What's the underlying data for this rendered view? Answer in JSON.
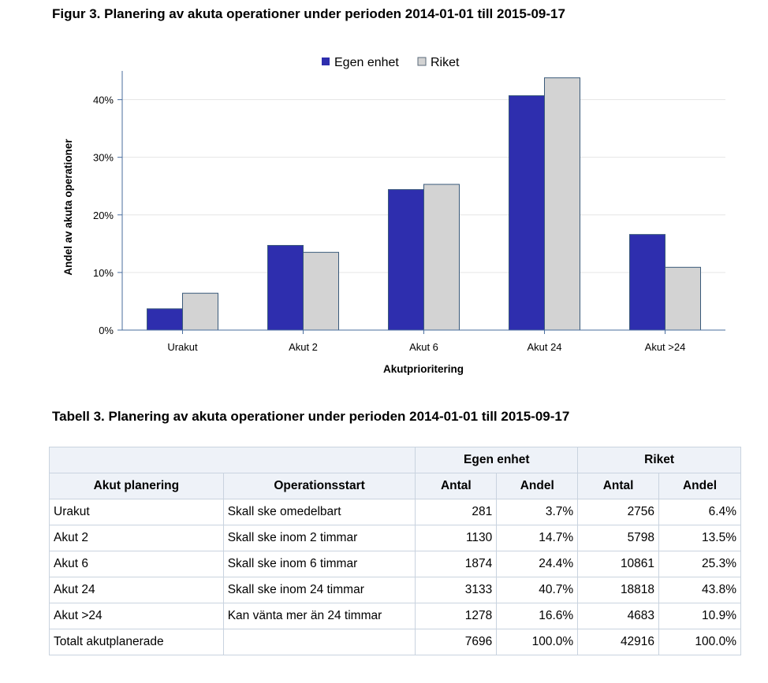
{
  "figure_title": "Figur 3. Planering av akuta operationer under perioden 2014-01-01 till 2015-09-17",
  "table_title": "Tabell 3. Planering av akuta operationer under perioden 2014-01-01 till 2015-09-17",
  "colors": {
    "egen": "#2e2eae",
    "riket": "#d3d3d3"
  },
  "chart_data": {
    "type": "bar",
    "categories": [
      "Urakut",
      "Akut 2",
      "Akut 6",
      "Akut 24",
      "Akut >24"
    ],
    "series": [
      {
        "name": "Egen enhet",
        "values": [
          3.7,
          14.7,
          24.4,
          40.7,
          16.6
        ],
        "color": "#2e2eae"
      },
      {
        "name": "Riket",
        "values": [
          6.4,
          13.5,
          25.3,
          43.8,
          10.9
        ],
        "color": "#d3d3d3"
      }
    ],
    "xlabel": "Akutprioritering",
    "ylabel": "Andel av akuta operationer",
    "ylim": [
      0,
      45
    ],
    "yticks": [
      0,
      10,
      20,
      30,
      40
    ],
    "ytick_labels": [
      "0%",
      "10%",
      "20%",
      "30%",
      "40%"
    ],
    "legend_position": "top-center",
    "grid": true
  },
  "table": {
    "group_headers": [
      "Egen enhet",
      "Riket"
    ],
    "columns": [
      "Akut planering",
      "Operationsstart",
      "Antal",
      "Andel",
      "Antal",
      "Andel"
    ],
    "rows": [
      [
        "Urakut",
        "Skall ske omedelbart",
        "281",
        "3.7%",
        "2756",
        "6.4%"
      ],
      [
        "Akut 2",
        "Skall ske inom 2 timmar",
        "1130",
        "14.7%",
        "5798",
        "13.5%"
      ],
      [
        "Akut 6",
        "Skall ske inom 6 timmar",
        "1874",
        "24.4%",
        "10861",
        "25.3%"
      ],
      [
        "Akut 24",
        "Skall ske inom 24 timmar",
        "3133",
        "40.7%",
        "18818",
        "43.8%"
      ],
      [
        "Akut >24",
        "Kan vänta mer än 24 timmar",
        "1278",
        "16.6%",
        "4683",
        "10.9%"
      ],
      [
        "Totalt akutplanerade",
        "",
        "7696",
        "100.0%",
        "42916",
        "100.0%"
      ]
    ]
  }
}
